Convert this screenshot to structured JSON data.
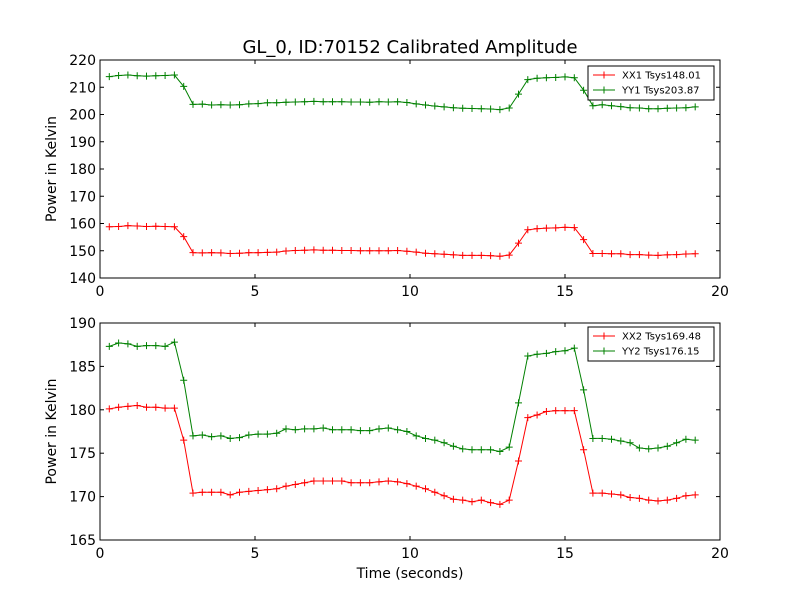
{
  "figure": {
    "title": "GL_0, ID:70152 Calibrated Amplitude",
    "xlabel": "Time (seconds)"
  },
  "colors": {
    "series_a": "#ff0000",
    "series_b": "#008000"
  },
  "chart_data": [
    {
      "type": "line",
      "ylabel": "Power in Kelvin",
      "xlim": [
        0,
        20
      ],
      "ylim": [
        140,
        220
      ],
      "xticks": [
        0,
        5,
        10,
        15,
        20
      ],
      "yticks": [
        140,
        150,
        160,
        170,
        180,
        190,
        200,
        210,
        220
      ],
      "legend_position": "top-right",
      "grid": false,
      "x": [
        0.3,
        0.6,
        0.9,
        1.2,
        1.5,
        1.8,
        2.1,
        2.4,
        2.7,
        3.0,
        3.3,
        3.6,
        3.9,
        4.2,
        4.5,
        4.8,
        5.1,
        5.4,
        5.7,
        6.0,
        6.3,
        6.6,
        6.9,
        7.2,
        7.5,
        7.8,
        8.1,
        8.4,
        8.7,
        9.0,
        9.3,
        9.6,
        9.9,
        10.2,
        10.5,
        10.8,
        11.1,
        11.4,
        11.7,
        12.0,
        12.3,
        12.6,
        12.9,
        13.2,
        13.5,
        13.8,
        14.1,
        14.4,
        14.7,
        15.0,
        15.3,
        15.6,
        15.9,
        16.2,
        16.5,
        16.8,
        17.1,
        17.4,
        17.7,
        18.0,
        18.3,
        18.6,
        18.9,
        19.2
      ],
      "series": [
        {
          "name": "XX1 Tsys148.01",
          "color": "#ff0000",
          "values": [
            158.8,
            158.9,
            159.2,
            159.1,
            158.9,
            159.0,
            158.9,
            158.8,
            155.2,
            149.3,
            149.2,
            149.3,
            149.2,
            149.0,
            149.1,
            149.3,
            149.3,
            149.4,
            149.5,
            149.9,
            150.1,
            150.2,
            150.3,
            150.2,
            150.2,
            150.1,
            150.1,
            150.0,
            150.0,
            150.0,
            150.0,
            150.1,
            149.8,
            149.5,
            149.1,
            148.9,
            148.7,
            148.5,
            148.3,
            148.3,
            148.3,
            148.2,
            148.0,
            148.4,
            152.8,
            157.7,
            158.1,
            158.3,
            158.4,
            158.6,
            158.5,
            154.1,
            149.0,
            149.0,
            148.9,
            148.9,
            148.6,
            148.6,
            148.4,
            148.3,
            148.5,
            148.6,
            148.8,
            148.9
          ]
        },
        {
          "name": "YY1 Tsys203.87",
          "color": "#008000",
          "values": [
            213.9,
            214.3,
            214.5,
            214.2,
            214.1,
            214.2,
            214.3,
            214.5,
            210.3,
            203.7,
            203.8,
            203.5,
            203.6,
            203.5,
            203.6,
            203.9,
            204.0,
            204.3,
            204.3,
            204.5,
            204.6,
            204.7,
            204.8,
            204.7,
            204.7,
            204.7,
            204.6,
            204.6,
            204.5,
            204.7,
            204.6,
            204.7,
            204.4,
            203.9,
            203.5,
            203.1,
            202.8,
            202.5,
            202.3,
            202.2,
            202.1,
            202.0,
            201.8,
            202.4,
            207.5,
            212.8,
            213.3,
            213.5,
            213.6,
            213.8,
            213.5,
            208.9,
            203.2,
            203.6,
            203.2,
            202.9,
            202.5,
            202.4,
            202.1,
            202.1,
            202.3,
            202.4,
            202.5,
            202.8
          ]
        }
      ]
    },
    {
      "type": "line",
      "ylabel": "Power in Kelvin",
      "xlabel": "Time (seconds)",
      "xlim": [
        0,
        20
      ],
      "ylim": [
        165,
        190
      ],
      "xticks": [
        0,
        5,
        10,
        15,
        20
      ],
      "yticks": [
        165,
        170,
        175,
        180,
        185,
        190
      ],
      "legend_position": "top-right",
      "grid": false,
      "x": [
        0.3,
        0.6,
        0.9,
        1.2,
        1.5,
        1.8,
        2.1,
        2.4,
        2.7,
        3.0,
        3.3,
        3.6,
        3.9,
        4.2,
        4.5,
        4.8,
        5.1,
        5.4,
        5.7,
        6.0,
        6.3,
        6.6,
        6.9,
        7.2,
        7.5,
        7.8,
        8.1,
        8.4,
        8.7,
        9.0,
        9.3,
        9.6,
        9.9,
        10.2,
        10.5,
        10.8,
        11.1,
        11.4,
        11.7,
        12.0,
        12.3,
        12.6,
        12.9,
        13.2,
        13.5,
        13.8,
        14.1,
        14.4,
        14.7,
        15.0,
        15.3,
        15.6,
        15.9,
        16.2,
        16.5,
        16.8,
        17.1,
        17.4,
        17.7,
        18.0,
        18.3,
        18.6,
        18.9,
        19.2
      ],
      "series": [
        {
          "name": "XX2 Tsys169.48",
          "color": "#ff0000",
          "values": [
            180.1,
            180.3,
            180.4,
            180.5,
            180.3,
            180.3,
            180.2,
            180.2,
            176.5,
            170.4,
            170.5,
            170.5,
            170.5,
            170.2,
            170.5,
            170.6,
            170.7,
            170.8,
            170.9,
            171.2,
            171.4,
            171.6,
            171.8,
            171.8,
            171.8,
            171.8,
            171.6,
            171.6,
            171.6,
            171.7,
            171.8,
            171.7,
            171.5,
            171.2,
            170.9,
            170.5,
            170.1,
            169.7,
            169.6,
            169.4,
            169.6,
            169.3,
            169.1,
            169.6,
            174.1,
            179.1,
            179.4,
            179.8,
            179.9,
            179.9,
            179.9,
            175.4,
            170.4,
            170.4,
            170.3,
            170.2,
            169.9,
            169.8,
            169.6,
            169.5,
            169.6,
            169.8,
            170.1,
            170.2
          ]
        },
        {
          "name": "YY2 Tsys176.15",
          "color": "#008000",
          "values": [
            187.3,
            187.7,
            187.6,
            187.3,
            187.4,
            187.4,
            187.3,
            187.8,
            183.4,
            177.0,
            177.1,
            176.9,
            177.0,
            176.7,
            176.8,
            177.1,
            177.2,
            177.2,
            177.3,
            177.8,
            177.7,
            177.8,
            177.8,
            177.9,
            177.7,
            177.7,
            177.7,
            177.6,
            177.6,
            177.8,
            177.9,
            177.7,
            177.5,
            177.0,
            176.7,
            176.5,
            176.2,
            175.8,
            175.5,
            175.4,
            175.4,
            175.4,
            175.2,
            175.7,
            180.8,
            186.2,
            186.4,
            186.5,
            186.7,
            186.8,
            187.1,
            182.3,
            176.7,
            176.7,
            176.6,
            176.4,
            176.2,
            175.6,
            175.5,
            175.6,
            175.8,
            176.2,
            176.6,
            176.5
          ]
        }
      ]
    }
  ]
}
